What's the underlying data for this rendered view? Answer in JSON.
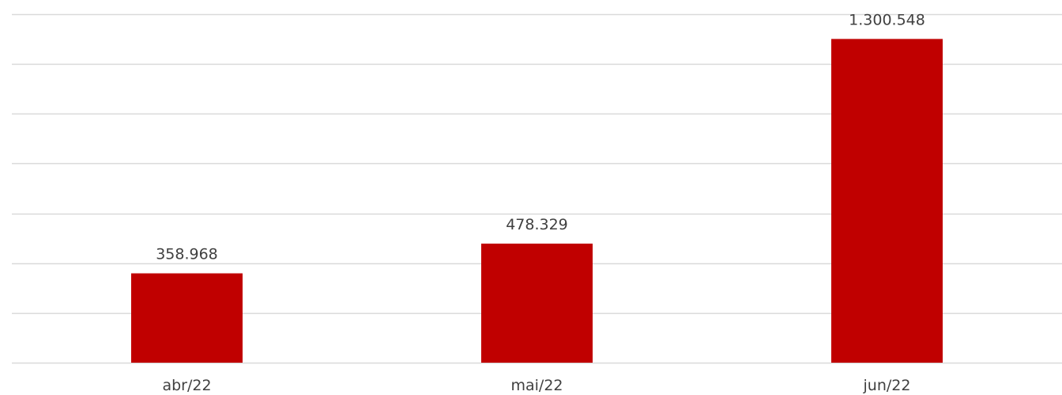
{
  "chart_data": {
    "type": "bar",
    "categories": [
      "abr/22",
      "mai/22",
      "jun/22"
    ],
    "values": [
      358968,
      478329,
      1300548
    ],
    "value_labels": [
      "358.968",
      "478.329",
      "1.300.548"
    ],
    "ylim": [
      0,
      1400000
    ],
    "grid_step": 200000,
    "grid": true,
    "colors": {
      "bar": "#c00000",
      "grid": "#d9d9d9",
      "text": "#404040"
    }
  }
}
